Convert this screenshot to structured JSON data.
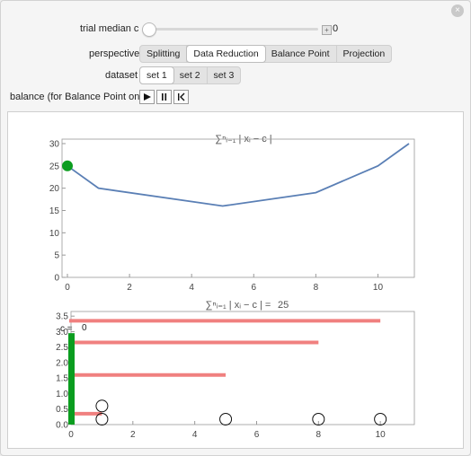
{
  "window": {
    "close_glyph": "×"
  },
  "controls": {
    "trial_median": {
      "label": "trial median c",
      "value": "0",
      "slider_fraction": 0.0
    },
    "perspective": {
      "label": "perspective",
      "options": [
        "Splitting",
        "Data Reduction",
        "Balance Point",
        "Projection"
      ],
      "selected": "Data Reduction"
    },
    "dataset": {
      "label": "dataset",
      "options": [
        "set 1",
        "set 2",
        "set 3"
      ],
      "selected": "set 1"
    },
    "balance": {
      "label": "balance (for Balance Point only)",
      "buttons": [
        "play-icon",
        "pause-icon",
        "step-back-icon"
      ]
    }
  },
  "colors": {
    "line": "#5a7fb5",
    "point": "#0b9d1f",
    "bar": "#f0807f",
    "green_bar": "#0b9d1f"
  },
  "chart_data": [
    {
      "type": "line",
      "title": "∑ⁿᵢ₌₁ | xᵢ − c |",
      "x": [
        0,
        1,
        5,
        8,
        10,
        11
      ],
      "y": [
        25,
        20,
        16,
        19,
        25,
        30
      ],
      "xticks": [
        0,
        2,
        4,
        6,
        8,
        10
      ],
      "yticks": [
        0,
        5,
        10,
        15,
        20,
        25,
        30
      ],
      "xlim": [
        0,
        11
      ],
      "ylim": [
        0,
        31
      ],
      "highlight": {
        "x": 0,
        "y": 25
      }
    },
    {
      "type": "bar",
      "title": "∑ⁿᵢ₌₁ | xᵢ − c | =",
      "title_value": "25",
      "axis_label": "c =",
      "axis_value": "0",
      "data_points": [
        1,
        5,
        8,
        10
      ],
      "extra_point": {
        "x": 1,
        "y": 0.6
      },
      "bars": [
        {
          "y": 3.35,
          "from": 0,
          "to": 10
        },
        {
          "y": 2.65,
          "from": 0,
          "to": 8
        },
        {
          "y": 1.6,
          "from": 0,
          "to": 5
        },
        {
          "y": 0.35,
          "from": 0,
          "to": 1
        }
      ],
      "xticks": [
        0,
        2,
        4,
        6,
        8,
        10
      ],
      "yticks": [
        0.0,
        0.5,
        1.0,
        1.5,
        2.0,
        2.5,
        3.0,
        3.5
      ],
      "xlim": [
        0,
        11.1
      ],
      "ylim": [
        0,
        3.65
      ],
      "green_bar": {
        "x": 0,
        "from": 0,
        "to": 2.95
      }
    }
  ]
}
